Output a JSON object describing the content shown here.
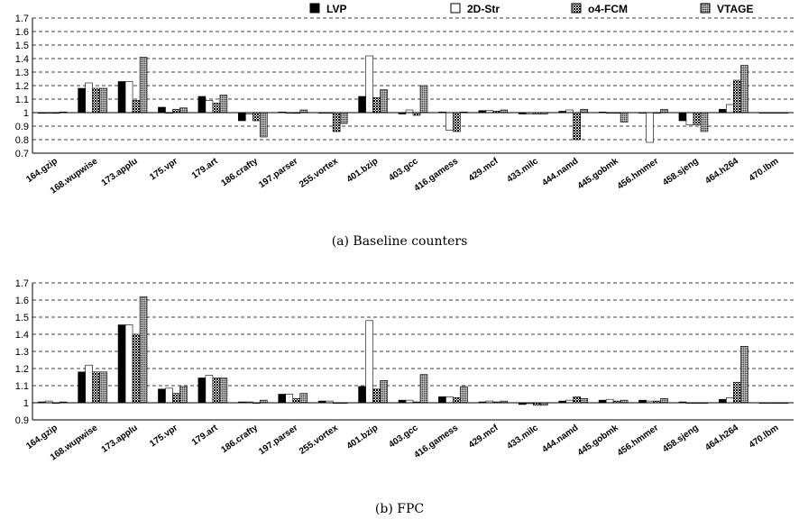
{
  "chart_data": [
    {
      "type": "bar",
      "title": "",
      "caption": "(a) Baseline counters",
      "xlabel": "",
      "ylabel": "",
      "ylim": [
        0.7,
        1.7
      ],
      "yticks": [
        "0.7",
        "0.8",
        "0.9",
        "1",
        "1.1",
        "1.2",
        "1.3",
        "1.4",
        "1.5",
        "1.6",
        "1.7"
      ],
      "grid": true,
      "legend_position": "top",
      "categories": [
        "164.gzip",
        "168.wupwise",
        "173.applu",
        "175.vpr",
        "179.art",
        "186.crafty",
        "197.parser",
        "255.vortex",
        "401.bzip",
        "403.gcc",
        "416.gamess",
        "429.mcf",
        "433.milc",
        "444.namd",
        "445.gobmk",
        "456.hmmer",
        "458.sjeng",
        "464.h264",
        "470.lbm"
      ],
      "series": [
        {
          "name": "LVP",
          "values": [
            0.995,
            1.18,
            1.23,
            1.04,
            1.12,
            0.94,
            1.005,
            1.0,
            1.12,
            0.99,
            1.005,
            1.015,
            0.99,
            1.01,
            1.005,
            1.0,
            0.94,
            1.025,
            1.0
          ]
        },
        {
          "name": "2D-Str",
          "values": [
            1.0,
            1.22,
            1.23,
            1.0,
            1.09,
            0.99,
            1.0,
            1.0,
            1.42,
            1.02,
            0.87,
            1.015,
            0.99,
            1.02,
            1.0,
            0.78,
            0.91,
            1.06,
            1.0
          ]
        },
        {
          "name": "o4-FCM",
          "values": [
            0.995,
            1.18,
            1.09,
            1.025,
            1.07,
            0.94,
            0.995,
            0.86,
            1.11,
            0.98,
            0.86,
            1.01,
            0.99,
            0.8,
            1.0,
            1.0,
            0.91,
            1.24,
            1.0
          ]
        },
        {
          "name": "VTAGE",
          "values": [
            1.005,
            1.18,
            1.41,
            1.035,
            1.13,
            0.82,
            1.02,
            0.92,
            1.17,
            1.2,
            1.005,
            1.02,
            0.99,
            1.025,
            0.93,
            1.025,
            0.86,
            1.35,
            1.0
          ]
        }
      ]
    },
    {
      "type": "bar",
      "title": "",
      "caption": "(b) FPC",
      "xlabel": "",
      "ylabel": "",
      "ylim": [
        0.9,
        1.7
      ],
      "yticks": [
        "0.9",
        "1",
        "1.1",
        "1.2",
        "1.3",
        "1.4",
        "1.5",
        "1.6",
        "1.7"
      ],
      "grid": true,
      "legend_position": "none",
      "categories": [
        "164.gzip",
        "168.wupwise",
        "173.applu",
        "175.vpr",
        "179.art",
        "186.crafty",
        "197.parser",
        "255.vortex",
        "401.bzip",
        "403.gcc",
        "416.gamess",
        "429.mcf",
        "433.milc",
        "444.namd",
        "445.gobmk",
        "456.hmmer",
        "458.sjeng",
        "464.h264",
        "470.lbm"
      ],
      "series": [
        {
          "name": "LVP",
          "values": [
            1.005,
            1.18,
            1.455,
            1.08,
            1.145,
            1.005,
            1.05,
            1.01,
            1.095,
            1.015,
            1.035,
            1.005,
            0.99,
            1.01,
            1.015,
            1.015,
            1.005,
            1.02,
            1.0
          ]
        },
        {
          "name": "2D-Str",
          "values": [
            1.01,
            1.22,
            1.455,
            1.085,
            1.16,
            1.005,
            1.05,
            1.01,
            1.48,
            1.015,
            1.035,
            1.01,
            0.995,
            1.015,
            1.02,
            1.01,
            1.0,
            1.03,
            1.0
          ]
        },
        {
          "name": "o4-FCM",
          "values": [
            1.0,
            1.18,
            1.4,
            1.055,
            1.145,
            1.0,
            1.025,
            1.0,
            1.08,
            1.005,
            1.03,
            1.005,
            0.985,
            1.035,
            1.01,
            1.01,
            1.0,
            1.12,
            1.0
          ]
        },
        {
          "name": "VTAGE",
          "values": [
            1.005,
            1.18,
            1.62,
            1.095,
            1.145,
            1.015,
            1.055,
            1.0,
            1.13,
            1.165,
            1.095,
            1.01,
            0.985,
            1.025,
            1.015,
            1.025,
            1.0,
            1.33,
            1.0
          ]
        }
      ]
    }
  ],
  "legend": [
    {
      "label": "LVP",
      "fill": "#000000"
    },
    {
      "label": "2D-Str",
      "fill": "#ffffff"
    },
    {
      "label": "o4-FCM",
      "fill": "pattern-checker"
    },
    {
      "label": "VTAGE",
      "fill": "pattern-gray"
    }
  ]
}
